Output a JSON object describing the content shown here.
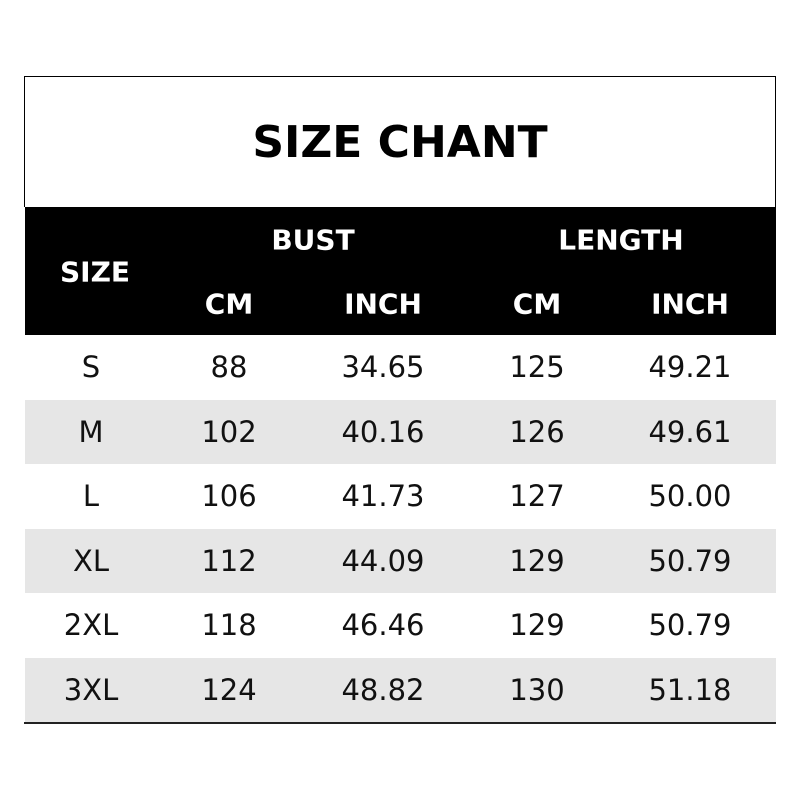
{
  "title": "SIZE CHANT",
  "header": {
    "size": "SIZE",
    "bust": "BUST",
    "length": "LENGTH",
    "bust_cm": "CM",
    "bust_inch": "INCH",
    "length_cm": "CM",
    "length_inch": "INCH"
  },
  "rows": [
    [
      "S",
      "88",
      "34.65",
      "125",
      "49.21"
    ],
    [
      "M",
      "102",
      "40.16",
      "126",
      "49.61"
    ],
    [
      "L",
      "106",
      "41.73",
      "127",
      "50.00"
    ],
    [
      "XL",
      "112",
      "44.09",
      "129",
      "50.79"
    ],
    [
      "2XL",
      "118",
      "46.46",
      "129",
      "50.79"
    ],
    [
      "3XL",
      "124",
      "48.82",
      "130",
      "51.18"
    ]
  ],
  "colors": {
    "header_bg": "#000000",
    "alt_row": "#e6e6e6"
  }
}
